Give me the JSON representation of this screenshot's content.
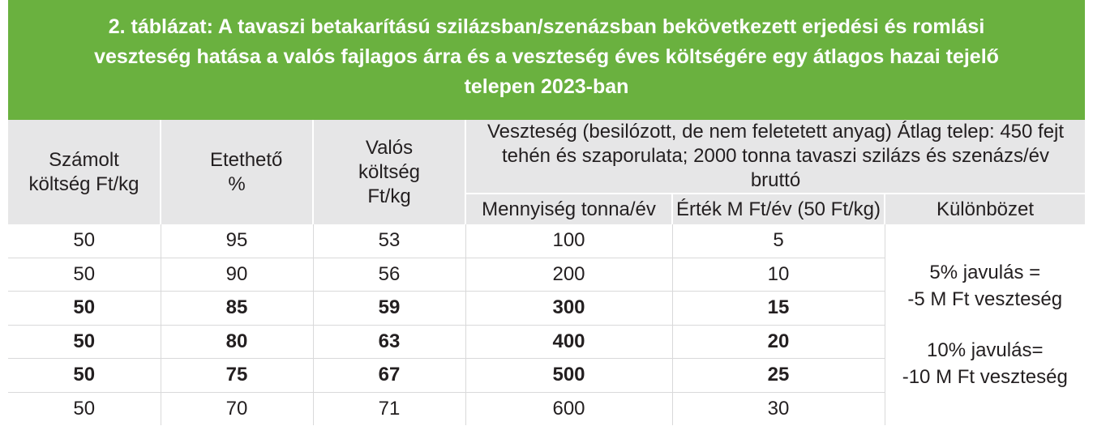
{
  "title": {
    "lines": [
      "2. táblázat: A tavaszi betakarítású szilázsban/szenázsban bekövetkezett erjedési és romlási",
      "veszteség hatása a valós fajlagos árra és a veszteség éves költségére egy átlagos hazai tejelő",
      "telepen 2023-ban"
    ]
  },
  "headers": {
    "col1": "Számolt költség Ft/kg",
    "col2": "Etethető %",
    "col3": "Valós költség Ft/kg",
    "group": "Veszteség (besilózott, de nem feletetett anyag) Átlag telep: 450 fejt tehén és szaporulata; 2000 tonna tavaszi szilázs és szenázs/év bruttó",
    "sub1": "Mennyiség tonna/év",
    "sub2": "Érték M Ft/év (50 Ft/kg)",
    "sub3": "Különbözet"
  },
  "rows": [
    {
      "c1": "50",
      "c2": "95",
      "c3": "53",
      "c4": "100",
      "c5": "5"
    },
    {
      "c1": "50",
      "c2": "90",
      "c3": "56",
      "c4": "200",
      "c5": "10"
    },
    {
      "c1": "50",
      "c2": "85",
      "c3": "59",
      "c4": "300",
      "c5": "15"
    },
    {
      "c1": "50",
      "c2": "80",
      "c3": "63",
      "c4": "400",
      "c5": "20"
    },
    {
      "c1": "50",
      "c2": "75",
      "c3": "67",
      "c4": "500",
      "c5": "25"
    },
    {
      "c1": "50",
      "c2": "70",
      "c3": "71",
      "c4": "600",
      "c5": "30"
    }
  ],
  "difference_note": {
    "line1": "5% javulás =",
    "line2": "-5 M Ft veszteség",
    "line3": "10% javulás=",
    "line4": "-10 M Ft veszteség"
  },
  "colors": {
    "title_bg": "#6ab13f",
    "header_bg": "#e6e6e7"
  }
}
